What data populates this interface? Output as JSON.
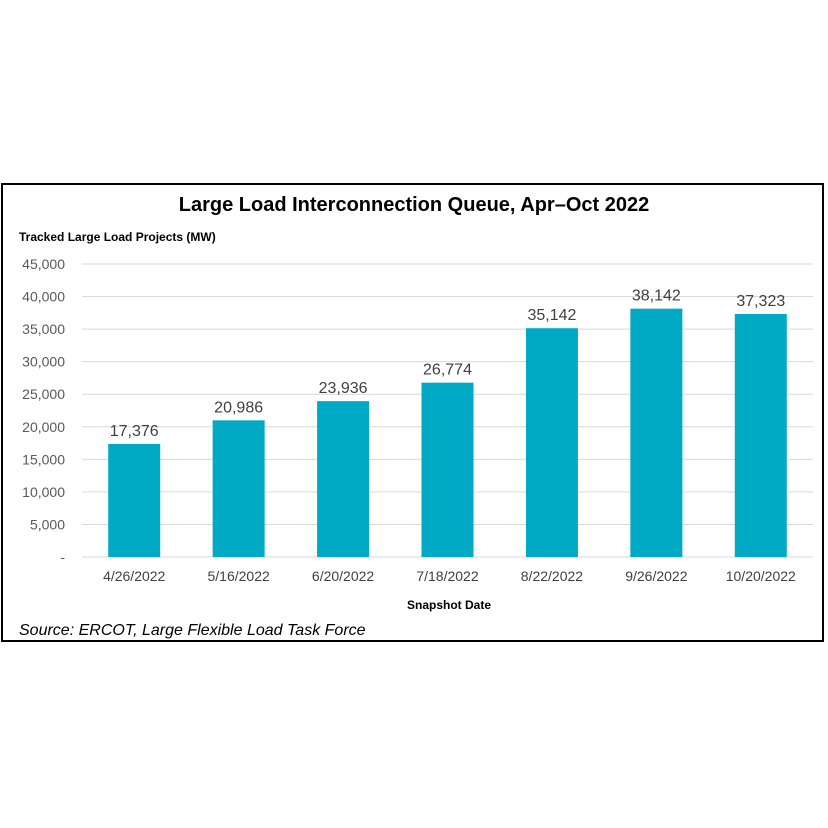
{
  "chart_data": {
    "type": "bar",
    "title": "Large Load Interconnection Queue, Apr–Oct 2022",
    "ylabel": "Tracked Large Load Projects (MW)",
    "xlabel": "Snapshot Date",
    "categories": [
      "4/26/2022",
      "5/16/2022",
      "6/20/2022",
      "7/18/2022",
      "8/22/2022",
      "9/26/2022",
      "10/20/2022"
    ],
    "values": [
      17376,
      20986,
      23936,
      26774,
      35142,
      38142,
      37323
    ],
    "value_labels": [
      "17,376",
      "20,986",
      "23,936",
      "26,774",
      "35,142",
      "38,142",
      "37,323"
    ],
    "ylim": [
      0,
      45000
    ],
    "yticks": [
      0,
      5000,
      10000,
      15000,
      20000,
      25000,
      30000,
      35000,
      40000,
      45000
    ],
    "ytick_labels": [
      "-",
      "5,000",
      "10,000",
      "15,000",
      "20,000",
      "25,000",
      "30,000",
      "35,000",
      "40,000",
      "45,000"
    ],
    "grid": true,
    "bar_color": "#00A9C4",
    "source": "Source: ERCOT, Large Flexible Load Task Force"
  }
}
